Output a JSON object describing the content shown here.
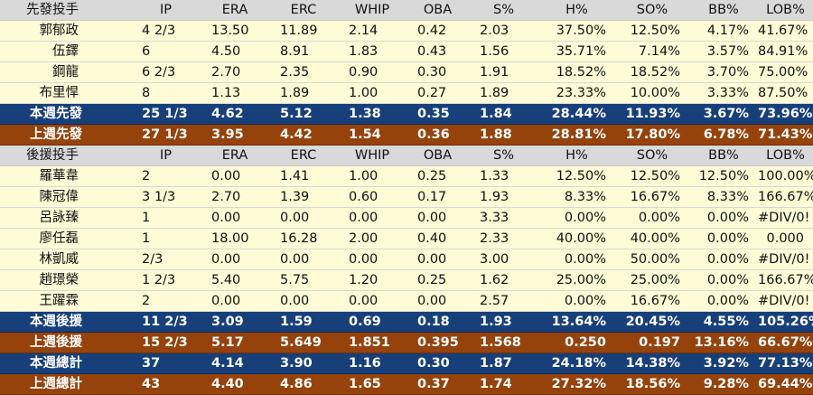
{
  "columns": [
    "IP",
    "ERA",
    "ERC",
    "WHIP",
    "OBA",
    "S%",
    "H%",
    "SO%",
    "BB%",
    "LOB%"
  ],
  "starters": {
    "section_label": "先發投手",
    "rows": [
      [
        "郭郁政",
        "4 2/3",
        "13.50",
        "11.89",
        "2.14",
        "0.42",
        "2.03",
        "37.50%",
        "12.50%",
        "4.17%",
        "41.67%"
      ],
      [
        "伍鐸",
        "6",
        "4.50",
        "8.91",
        "1.83",
        "0.43",
        "1.56",
        "35.71%",
        "7.14%",
        "3.57%",
        "84.91%"
      ],
      [
        "鋼龍",
        "6 2/3",
        "2.70",
        "2.35",
        "0.90",
        "0.30",
        "1.91",
        "18.52%",
        "18.52%",
        "3.70%",
        "75.00%"
      ],
      [
        "布里悍",
        "8",
        "1.13",
        "1.89",
        "1.00",
        "0.27",
        "1.89",
        "23.33%",
        "10.00%",
        "3.33%",
        "87.50%"
      ]
    ],
    "this_week": [
      "本週先發",
      "25 1/3",
      "4.62",
      "5.12",
      "1.38",
      "0.35",
      "1.84",
      "28.44%",
      "11.93%",
      "3.67%",
      "73.96%"
    ],
    "last_week": [
      "上週先發",
      "27 1/3",
      "3.95",
      "4.42",
      "1.54",
      "0.36",
      "1.88",
      "28.81%",
      "17.80%",
      "6.78%",
      "71.43%"
    ]
  },
  "relievers": {
    "section_label": "後援投手",
    "rows": [
      [
        "羅華韋",
        "2",
        "0.00",
        "1.41",
        "1.00",
        "0.25",
        "1.33",
        "12.50%",
        "12.50%",
        "12.50%",
        "100.00%"
      ],
      [
        "陳冠偉",
        "3 1/3",
        "2.70",
        "1.39",
        "0.60",
        "0.17",
        "1.93",
        "8.33%",
        "16.67%",
        "8.33%",
        "166.67%"
      ],
      [
        "呂詠臻",
        "1",
        "0.00",
        "0.00",
        "0.00",
        "0.00",
        "3.33",
        "0.00%",
        "0.00%",
        "0.00%",
        "#DIV/0!"
      ],
      [
        "廖任磊",
        "1",
        "18.00",
        "16.28",
        "2.00",
        "0.40",
        "2.33",
        "40.00%",
        "40.00%",
        "0.00%",
        "0.000"
      ],
      [
        "林凱威",
        "2/3",
        "0.00",
        "0.00",
        "0.00",
        "0.00",
        "3.00",
        "0.00%",
        "50.00%",
        "0.00%",
        "#DIV/0!"
      ],
      [
        "趙璟榮",
        "1 2/3",
        "5.40",
        "5.75",
        "1.20",
        "0.25",
        "1.62",
        "25.00%",
        "25.00%",
        "0.00%",
        "166.67%"
      ],
      [
        "王躍霖",
        "2",
        "0.00",
        "0.00",
        "0.00",
        "0.00",
        "2.57",
        "0.00%",
        "16.67%",
        "0.00%",
        "#DIV/0!"
      ]
    ],
    "this_week": [
      "本週後援",
      "11 2/3",
      "3.09",
      "1.59",
      "0.69",
      "0.18",
      "1.93",
      "13.64%",
      "20.45%",
      "4.55%",
      "105.26%"
    ],
    "last_week": [
      "上週後援",
      "15 2/3",
      "5.17",
      "5.649",
      "1.851",
      "0.395",
      "1.568",
      "0.250",
      "0.197",
      "13.16%",
      "66.67%"
    ]
  },
  "totals": {
    "this_week": [
      "本週總計",
      "37",
      "4.14",
      "3.90",
      "1.16",
      "0.30",
      "1.87",
      "24.18%",
      "14.38%",
      "3.92%",
      "77.13%"
    ],
    "last_week": [
      "上週總計",
      "43",
      "4.40",
      "4.86",
      "1.65",
      "0.37",
      "1.74",
      "27.32%",
      "18.56%",
      "9.28%",
      "69.44%"
    ]
  },
  "colors": {
    "header_bg": "#d9d9d9",
    "player_bg": "#fffbd6",
    "this_week_bg": "#17407a",
    "last_week_bg": "#96420b"
  }
}
